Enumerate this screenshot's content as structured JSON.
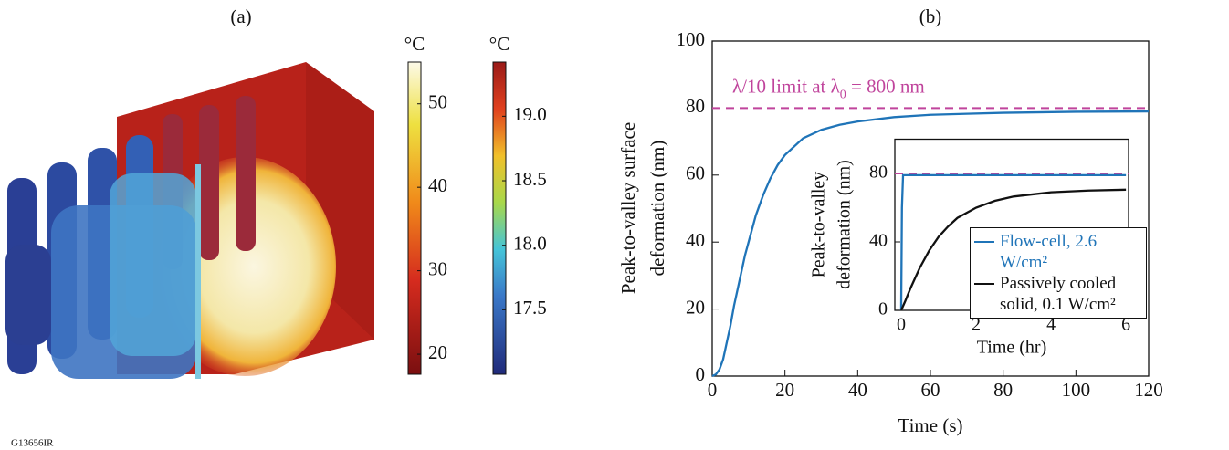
{
  "panel_a": {
    "label": "(a)",
    "colorbars": [
      {
        "unit": "°C",
        "lim": [
          17.6,
          55
        ],
        "ticks": [
          20,
          30,
          40,
          50
        ]
      },
      {
        "unit": "°C",
        "lim": [
          17.0,
          19.42
        ],
        "ticks": [
          17.5,
          {
            "value": 18,
            "label": "18.0"
          },
          18.5,
          {
            "value": 19,
            "label": "19.0"
          }
        ]
      }
    ]
  },
  "chart_data": [
    {
      "type": "line",
      "title": "(b)",
      "xlabel": "Time (s)",
      "ylabel": [
        "Peak-to-valley surface",
        "deformation (nm)"
      ],
      "xlim": [
        0,
        120
      ],
      "ylim": [
        0,
        100
      ],
      "xticks": [
        0,
        20,
        40,
        60,
        80,
        100,
        120
      ],
      "yticks": [
        0,
        20,
        40,
        60,
        80,
        100
      ],
      "series": [
        {
          "color": "#1f74b8",
          "x": [
            0,
            1,
            2,
            3,
            4,
            5,
            6,
            7,
            8,
            9,
            10,
            12,
            14,
            16,
            18,
            20,
            25,
            30,
            35,
            40,
            50,
            60,
            70,
            80,
            100,
            120
          ],
          "values": [
            0,
            0.5,
            2,
            5,
            10,
            15,
            21,
            26,
            31,
            36,
            40,
            48,
            54,
            59,
            63,
            66,
            71,
            73.5,
            75,
            76,
            77.3,
            78,
            78.3,
            78.6,
            78.9,
            79
          ]
        }
      ],
      "hlines": [
        {
          "value": 80,
          "color": "#c0449c"
        }
      ],
      "annotation": [
        "λ/10 limit at λ",
        "0",
        " = 800 nm"
      ]
    },
    {
      "type": "line",
      "xlabel": "Time (hr)",
      "ylabel": [
        "Peak-to-valley",
        "deformation (nm)"
      ],
      "xlim": [
        -0.17,
        6.07
      ],
      "ylim": [
        0,
        100
      ],
      "xticks": [
        0,
        2,
        4,
        6
      ],
      "yticks": [
        0,
        40,
        80
      ],
      "legend": "lower right",
      "series": [
        {
          "name": "Flow-cell, 2.6 W/cm²",
          "color": "#1f74b8",
          "x": [
            0,
            0.02,
            0.05,
            6
          ],
          "values": [
            0,
            60,
            79,
            79
          ]
        },
        {
          "name": "Passively cooled solid, 0.1 W/cm²",
          "color": "#111111",
          "x": [
            0,
            0.1,
            0.25,
            0.5,
            0.75,
            1,
            1.25,
            1.5,
            2,
            2.5,
            3,
            4,
            5,
            6
          ],
          "values": [
            0,
            5,
            13,
            25,
            35,
            43,
            49,
            54,
            60,
            64,
            66.5,
            69,
            70,
            70.5
          ]
        }
      ],
      "hlines": [
        {
          "value": 80,
          "color": "#c0449c"
        }
      ]
    }
  ],
  "figure_id": "G13656IR"
}
